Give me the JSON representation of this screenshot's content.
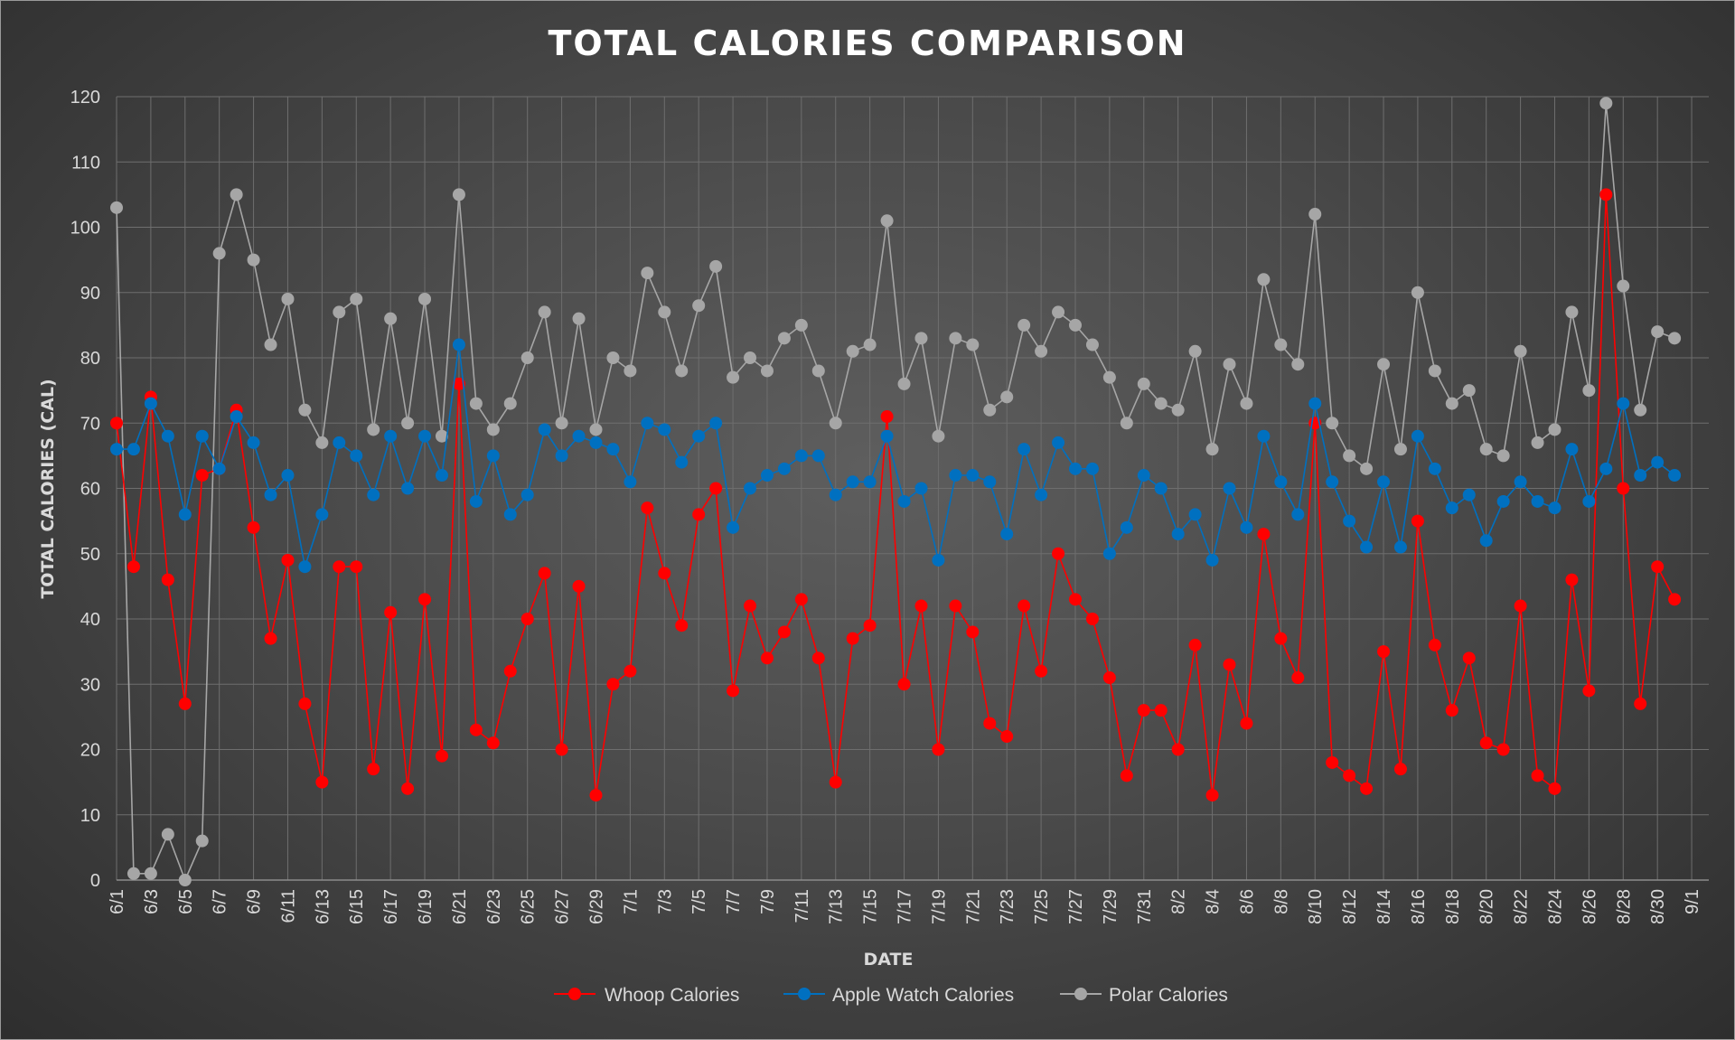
{
  "chart_data": {
    "type": "line",
    "title": "TOTAL CALORIES COMPARISON",
    "xlabel": "DATE",
    "ylabel": "TOTAL CALORIES (CAL)",
    "ylim": [
      0,
      120
    ],
    "yticks": [
      0,
      10,
      20,
      30,
      40,
      50,
      60,
      70,
      80,
      90,
      100,
      110,
      120
    ],
    "grid": true,
    "legend_position": "bottom",
    "x_start": "6/1",
    "x_end": "9/1",
    "x_tick_labels": [
      "6/1",
      "6/3",
      "6/5",
      "6/7",
      "6/9",
      "6/11",
      "6/13",
      "6/15",
      "6/17",
      "6/19",
      "6/21",
      "6/23",
      "6/25",
      "6/27",
      "6/29",
      "7/1",
      "7/3",
      "7/5",
      "7/7",
      "7/9",
      "7/11",
      "7/13",
      "7/15",
      "7/17",
      "7/19",
      "7/21",
      "7/23",
      "7/25",
      "7/27",
      "7/29",
      "7/31",
      "8/2",
      "8/4",
      "8/6",
      "8/8",
      "8/10",
      "8/12",
      "8/14",
      "8/16",
      "8/18",
      "8/20",
      "8/22",
      "8/24",
      "8/26",
      "8/28",
      "8/30",
      "9/1"
    ],
    "series": [
      {
        "name": "Whoop Calories",
        "color": "#ff0000",
        "values": [
          70,
          48,
          74,
          46,
          27,
          62,
          63,
          72,
          54,
          37,
          49,
          27,
          15,
          48,
          48,
          17,
          41,
          14,
          43,
          19,
          76,
          23,
          21,
          32,
          40,
          47,
          20,
          45,
          13,
          30,
          32,
          57,
          47,
          39,
          56,
          60,
          29,
          42,
          34,
          38,
          43,
          34,
          15,
          37,
          39,
          71,
          30,
          42,
          20,
          42,
          38,
          24,
          22,
          42,
          32,
          50,
          43,
          40,
          31,
          16,
          26,
          26,
          20,
          36,
          13,
          33,
          24,
          53,
          37,
          31,
          70,
          18,
          16,
          14,
          35,
          17,
          55,
          36,
          26,
          34,
          21,
          20,
          42,
          16,
          14,
          46,
          29,
          105,
          60,
          27,
          48,
          43
        ]
      },
      {
        "name": "Apple Watch Calories",
        "color": "#0070c0",
        "values": [
          66,
          66,
          73,
          68,
          56,
          68,
          63,
          71,
          67,
          59,
          62,
          48,
          56,
          67,
          65,
          59,
          68,
          60,
          68,
          62,
          82,
          58,
          65,
          56,
          59,
          69,
          65,
          68,
          67,
          66,
          61,
          70,
          69,
          64,
          68,
          70,
          54,
          60,
          62,
          63,
          65,
          65,
          59,
          61,
          61,
          68,
          58,
          60,
          49,
          62,
          62,
          61,
          53,
          66,
          59,
          67,
          63,
          63,
          50,
          54,
          62,
          60,
          53,
          56,
          49,
          60,
          54,
          68,
          61,
          56,
          73,
          61,
          55,
          51,
          61,
          51,
          68,
          63,
          57,
          59,
          52,
          58,
          61,
          58,
          57,
          66,
          58,
          63,
          73,
          62,
          64,
          62
        ]
      },
      {
        "name": "Polar Calories",
        "color": "#a6a6a6",
        "values": [
          103,
          1,
          1,
          7,
          0,
          6,
          96,
          105,
          95,
          82,
          89,
          72,
          67,
          87,
          89,
          69,
          86,
          70,
          89,
          68,
          105,
          73,
          69,
          73,
          80,
          87,
          70,
          86,
          69,
          80,
          78,
          93,
          87,
          78,
          88,
          94,
          77,
          80,
          78,
          83,
          85,
          78,
          70,
          81,
          82,
          101,
          76,
          83,
          68,
          83,
          82,
          72,
          74,
          85,
          81,
          87,
          85,
          82,
          77,
          70,
          76,
          73,
          72,
          81,
          66,
          79,
          73,
          92,
          82,
          79,
          102,
          70,
          65,
          63,
          79,
          66,
          90,
          78,
          73,
          75,
          66,
          65,
          81,
          67,
          69,
          87,
          75,
          119,
          91,
          72,
          84,
          83
        ]
      }
    ]
  }
}
